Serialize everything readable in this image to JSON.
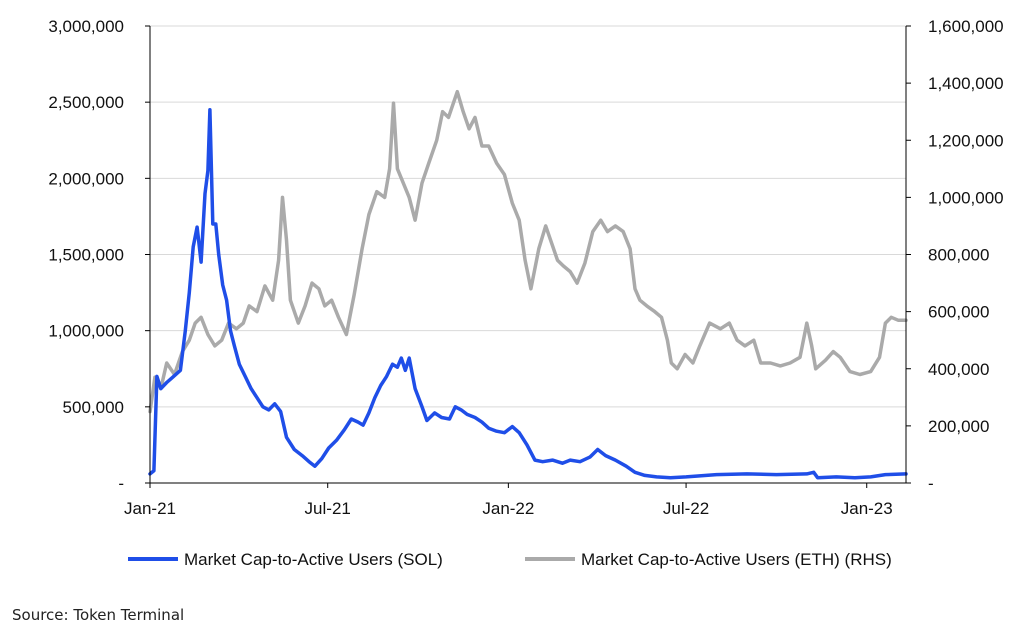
{
  "chart_data": {
    "type": "line",
    "title": "",
    "xlabel": "",
    "ylabel": "",
    "grid": true,
    "legend_position": "bottom",
    "x_range": [
      "2021-01-01",
      "2023-02-10"
    ],
    "x_ticks": [
      {
        "date": "2021-01-01",
        "label": "Jan-21"
      },
      {
        "date": "2021-07-01",
        "label": "Jul-21"
      },
      {
        "date": "2022-01-01",
        "label": "Jan-22"
      },
      {
        "date": "2022-07-01",
        "label": "Jul-22"
      },
      {
        "date": "2023-01-01",
        "label": "Jan-23"
      }
    ],
    "y_left": {
      "range": [
        0,
        3000000
      ],
      "ticks": [
        {
          "value": 0,
          "label": "-"
        },
        {
          "value": 500000,
          "label": "500,000"
        },
        {
          "value": 1000000,
          "label": "1,000,000"
        },
        {
          "value": 1500000,
          "label": "1,500,000"
        },
        {
          "value": 2000000,
          "label": "2,000,000"
        },
        {
          "value": 2500000,
          "label": "2,500,000"
        },
        {
          "value": 3000000,
          "label": "3,000,000"
        }
      ]
    },
    "y_right": {
      "range": [
        0,
        1600000
      ],
      "ticks": [
        {
          "value": 0,
          "label": "-"
        },
        {
          "value": 200000,
          "label": "200,000"
        },
        {
          "value": 400000,
          "label": "400,000"
        },
        {
          "value": 600000,
          "label": "600,000"
        },
        {
          "value": 800000,
          "label": "800,000"
        },
        {
          "value": 1000000,
          "label": "1,000,000"
        },
        {
          "value": 1200000,
          "label": "1,200,000"
        },
        {
          "value": 1400000,
          "label": "1,400,000"
        },
        {
          "value": 1600000,
          "label": "1,600,000"
        }
      ]
    },
    "series": [
      {
        "name": "Market Cap-to-Active Users (SOL)",
        "axis": "left",
        "color": "#1f4ee8",
        "points": [
          [
            "2021-01-01",
            60000
          ],
          [
            "2021-01-05",
            80000
          ],
          [
            "2021-01-08",
            700000
          ],
          [
            "2021-01-12",
            620000
          ],
          [
            "2021-01-18",
            660000
          ],
          [
            "2021-01-25",
            700000
          ],
          [
            "2021-02-01",
            740000
          ],
          [
            "2021-02-06",
            1000000
          ],
          [
            "2021-02-10",
            1250000
          ],
          [
            "2021-02-14",
            1550000
          ],
          [
            "2021-02-18",
            1680000
          ],
          [
            "2021-02-22",
            1450000
          ],
          [
            "2021-02-26",
            1900000
          ],
          [
            "2021-03-01",
            2050000
          ],
          [
            "2021-03-03",
            2450000
          ],
          [
            "2021-03-06",
            1700000
          ],
          [
            "2021-03-09",
            1700000
          ],
          [
            "2021-03-12",
            1500000
          ],
          [
            "2021-03-16",
            1300000
          ],
          [
            "2021-03-20",
            1200000
          ],
          [
            "2021-03-24",
            1000000
          ],
          [
            "2021-03-28",
            900000
          ],
          [
            "2021-04-02",
            780000
          ],
          [
            "2021-04-08",
            700000
          ],
          [
            "2021-04-14",
            620000
          ],
          [
            "2021-04-20",
            560000
          ],
          [
            "2021-04-26",
            500000
          ],
          [
            "2021-05-02",
            480000
          ],
          [
            "2021-05-08",
            520000
          ],
          [
            "2021-05-14",
            470000
          ],
          [
            "2021-05-20",
            300000
          ],
          [
            "2021-05-28",
            220000
          ],
          [
            "2021-06-05",
            180000
          ],
          [
            "2021-06-12",
            140000
          ],
          [
            "2021-06-18",
            110000
          ],
          [
            "2021-06-25",
            160000
          ],
          [
            "2021-07-02",
            230000
          ],
          [
            "2021-07-10",
            280000
          ],
          [
            "2021-07-18",
            350000
          ],
          [
            "2021-07-25",
            420000
          ],
          [
            "2021-08-01",
            400000
          ],
          [
            "2021-08-06",
            380000
          ],
          [
            "2021-08-12",
            460000
          ],
          [
            "2021-08-18",
            560000
          ],
          [
            "2021-08-24",
            640000
          ],
          [
            "2021-08-30",
            700000
          ],
          [
            "2021-09-05",
            780000
          ],
          [
            "2021-09-10",
            760000
          ],
          [
            "2021-09-14",
            820000
          ],
          [
            "2021-09-18",
            740000
          ],
          [
            "2021-09-22",
            820000
          ],
          [
            "2021-09-28",
            620000
          ],
          [
            "2021-10-05",
            500000
          ],
          [
            "2021-10-10",
            410000
          ],
          [
            "2021-10-18",
            460000
          ],
          [
            "2021-10-25",
            430000
          ],
          [
            "2021-11-02",
            420000
          ],
          [
            "2021-11-08",
            500000
          ],
          [
            "2021-11-14",
            480000
          ],
          [
            "2021-11-20",
            450000
          ],
          [
            "2021-11-28",
            430000
          ],
          [
            "2021-12-05",
            400000
          ],
          [
            "2021-12-12",
            360000
          ],
          [
            "2021-12-20",
            340000
          ],
          [
            "2021-12-28",
            330000
          ],
          [
            "2022-01-05",
            370000
          ],
          [
            "2022-01-12",
            330000
          ],
          [
            "2022-01-20",
            250000
          ],
          [
            "2022-01-28",
            150000
          ],
          [
            "2022-02-05",
            140000
          ],
          [
            "2022-02-15",
            150000
          ],
          [
            "2022-02-25",
            130000
          ],
          [
            "2022-03-05",
            150000
          ],
          [
            "2022-03-15",
            140000
          ],
          [
            "2022-03-25",
            170000
          ],
          [
            "2022-04-02",
            220000
          ],
          [
            "2022-04-10",
            180000
          ],
          [
            "2022-04-20",
            150000
          ],
          [
            "2022-05-01",
            110000
          ],
          [
            "2022-05-10",
            70000
          ],
          [
            "2022-05-20",
            50000
          ],
          [
            "2022-06-01",
            40000
          ],
          [
            "2022-06-15",
            35000
          ],
          [
            "2022-07-01",
            40000
          ],
          [
            "2022-08-01",
            55000
          ],
          [
            "2022-09-01",
            60000
          ],
          [
            "2022-10-01",
            55000
          ],
          [
            "2022-11-01",
            60000
          ],
          [
            "2022-11-08",
            70000
          ],
          [
            "2022-11-12",
            35000
          ],
          [
            "2022-12-01",
            40000
          ],
          [
            "2022-12-20",
            35000
          ],
          [
            "2023-01-05",
            40000
          ],
          [
            "2023-01-20",
            55000
          ],
          [
            "2023-02-10",
            60000
          ]
        ]
      },
      {
        "name": "Market Cap-to-Active Users (ETH) (RHS)",
        "axis": "right",
        "color": "#aaaaaa",
        "points": [
          [
            "2021-01-01",
            250000
          ],
          [
            "2021-01-06",
            370000
          ],
          [
            "2021-01-12",
            330000
          ],
          [
            "2021-01-18",
            420000
          ],
          [
            "2021-01-26",
            380000
          ],
          [
            "2021-02-03",
            460000
          ],
          [
            "2021-02-10",
            500000
          ],
          [
            "2021-02-16",
            560000
          ],
          [
            "2021-02-22",
            580000
          ],
          [
            "2021-03-01",
            520000
          ],
          [
            "2021-03-08",
            480000
          ],
          [
            "2021-03-15",
            500000
          ],
          [
            "2021-03-22",
            560000
          ],
          [
            "2021-03-30",
            540000
          ],
          [
            "2021-04-06",
            560000
          ],
          [
            "2021-04-12",
            620000
          ],
          [
            "2021-04-20",
            600000
          ],
          [
            "2021-04-28",
            690000
          ],
          [
            "2021-05-06",
            640000
          ],
          [
            "2021-05-12",
            780000
          ],
          [
            "2021-05-16",
            1000000
          ],
          [
            "2021-05-20",
            850000
          ],
          [
            "2021-05-24",
            640000
          ],
          [
            "2021-06-01",
            560000
          ],
          [
            "2021-06-08",
            620000
          ],
          [
            "2021-06-15",
            700000
          ],
          [
            "2021-06-22",
            680000
          ],
          [
            "2021-06-28",
            620000
          ],
          [
            "2021-07-05",
            640000
          ],
          [
            "2021-07-12",
            580000
          ],
          [
            "2021-07-20",
            520000
          ],
          [
            "2021-07-28",
            660000
          ],
          [
            "2021-08-05",
            820000
          ],
          [
            "2021-08-12",
            940000
          ],
          [
            "2021-08-20",
            1020000
          ],
          [
            "2021-08-28",
            1000000
          ],
          [
            "2021-09-02",
            1100000
          ],
          [
            "2021-09-06",
            1330000
          ],
          [
            "2021-09-10",
            1100000
          ],
          [
            "2021-09-16",
            1050000
          ],
          [
            "2021-09-22",
            1000000
          ],
          [
            "2021-09-28",
            920000
          ],
          [
            "2021-10-05",
            1050000
          ],
          [
            "2021-10-12",
            1120000
          ],
          [
            "2021-10-20",
            1200000
          ],
          [
            "2021-10-26",
            1300000
          ],
          [
            "2021-11-01",
            1280000
          ],
          [
            "2021-11-06",
            1330000
          ],
          [
            "2021-11-10",
            1370000
          ],
          [
            "2021-11-16",
            1300000
          ],
          [
            "2021-11-22",
            1240000
          ],
          [
            "2021-11-28",
            1280000
          ],
          [
            "2021-12-05",
            1180000
          ],
          [
            "2021-12-12",
            1180000
          ],
          [
            "2021-12-20",
            1120000
          ],
          [
            "2021-12-28",
            1080000
          ],
          [
            "2022-01-05",
            980000
          ],
          [
            "2022-01-12",
            920000
          ],
          [
            "2022-01-18",
            780000
          ],
          [
            "2022-01-24",
            680000
          ],
          [
            "2022-02-01",
            820000
          ],
          [
            "2022-02-08",
            900000
          ],
          [
            "2022-02-14",
            840000
          ],
          [
            "2022-02-20",
            780000
          ],
          [
            "2022-02-26",
            760000
          ],
          [
            "2022-03-05",
            740000
          ],
          [
            "2022-03-12",
            700000
          ],
          [
            "2022-03-20",
            770000
          ],
          [
            "2022-03-28",
            880000
          ],
          [
            "2022-04-05",
            920000
          ],
          [
            "2022-04-12",
            880000
          ],
          [
            "2022-04-20",
            900000
          ],
          [
            "2022-04-28",
            880000
          ],
          [
            "2022-05-05",
            820000
          ],
          [
            "2022-05-10",
            680000
          ],
          [
            "2022-05-15",
            640000
          ],
          [
            "2022-05-22",
            620000
          ],
          [
            "2022-05-30",
            600000
          ],
          [
            "2022-06-06",
            580000
          ],
          [
            "2022-06-12",
            500000
          ],
          [
            "2022-06-16",
            420000
          ],
          [
            "2022-06-22",
            400000
          ],
          [
            "2022-06-30",
            450000
          ],
          [
            "2022-07-08",
            420000
          ],
          [
            "2022-07-15",
            480000
          ],
          [
            "2022-07-25",
            560000
          ],
          [
            "2022-08-05",
            540000
          ],
          [
            "2022-08-14",
            560000
          ],
          [
            "2022-08-22",
            500000
          ],
          [
            "2022-08-30",
            480000
          ],
          [
            "2022-09-08",
            500000
          ],
          [
            "2022-09-15",
            420000
          ],
          [
            "2022-09-25",
            420000
          ],
          [
            "2022-10-05",
            410000
          ],
          [
            "2022-10-15",
            420000
          ],
          [
            "2022-10-25",
            440000
          ],
          [
            "2022-11-01",
            560000
          ],
          [
            "2022-11-06",
            480000
          ],
          [
            "2022-11-10",
            400000
          ],
          [
            "2022-11-20",
            430000
          ],
          [
            "2022-11-28",
            460000
          ],
          [
            "2022-12-05",
            440000
          ],
          [
            "2022-12-15",
            390000
          ],
          [
            "2022-12-25",
            380000
          ],
          [
            "2023-01-05",
            390000
          ],
          [
            "2023-01-14",
            440000
          ],
          [
            "2023-01-20",
            560000
          ],
          [
            "2023-01-26",
            580000
          ],
          [
            "2023-02-02",
            570000
          ],
          [
            "2023-02-10",
            570000
          ]
        ]
      }
    ],
    "source": "Source: Token Terminal"
  }
}
